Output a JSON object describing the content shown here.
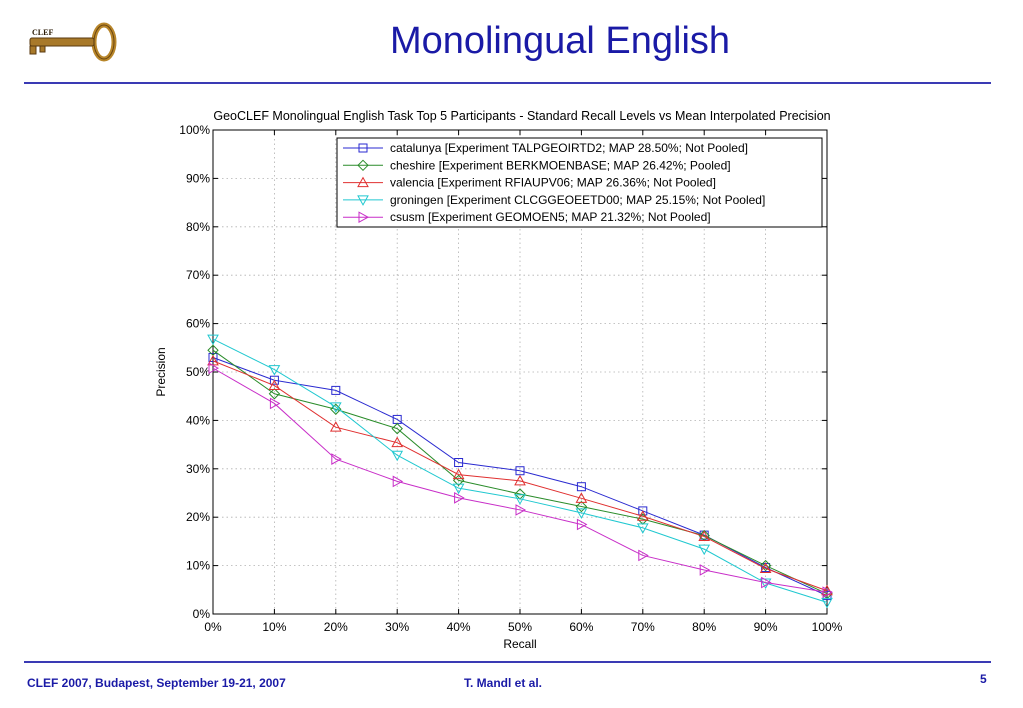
{
  "slide": {
    "title": "Monolingual English",
    "logo_text": "CLEF",
    "footer_left": "CLEF 2007, Budapest, September 19-21, 2007",
    "footer_center": "T. Mandl et al.",
    "page_number": "5",
    "accent_color": "#1a1aa6",
    "rule_color": "#3a3ab4",
    "logo_icon": "key-icon"
  },
  "chart_data": {
    "type": "line",
    "title": "GeoCLEF Monolingual English Task Top 5 Participants -  Standard Recall Levels vs Mean Interpolated Precision",
    "xlabel": "Recall",
    "ylabel": "Precision",
    "x": [
      0,
      10,
      20,
      30,
      40,
      50,
      60,
      70,
      80,
      90,
      100
    ],
    "x_ticks": [
      "0%",
      "10%",
      "20%",
      "30%",
      "40%",
      "50%",
      "60%",
      "70%",
      "80%",
      "90%",
      "100%"
    ],
    "y_ticks": [
      "0%",
      "10%",
      "20%",
      "30%",
      "40%",
      "50%",
      "60%",
      "70%",
      "80%",
      "90%",
      "100%"
    ],
    "xlim": [
      0,
      100
    ],
    "ylim": [
      0,
      100
    ],
    "grid": true,
    "legend_position": "top-right",
    "series": [
      {
        "name": "catalunya [Experiment TALPGEOIRTD2; MAP 28.50%; Not Pooled]",
        "color": "#2a2ad0",
        "marker": "square",
        "values": [
          53.0,
          48.3,
          46.2,
          40.2,
          31.3,
          29.6,
          26.3,
          21.3,
          16.3,
          9.6,
          3.8
        ]
      },
      {
        "name": "cheshire [Experiment BERKMOENBASE; MAP 26.42%; Pooled]",
        "color": "#2a8c2a",
        "marker": "diamond",
        "values": [
          54.5,
          45.5,
          42.3,
          38.3,
          27.6,
          24.8,
          22.2,
          19.6,
          16.2,
          10.0,
          4.2
        ]
      },
      {
        "name": "valencia [Experiment RFIAUPV06; MAP 26.36%; Not Pooled]",
        "color": "#e03030",
        "marker": "triangle-up",
        "values": [
          52.3,
          47.2,
          38.6,
          35.4,
          28.8,
          27.5,
          23.9,
          20.2,
          16.0,
          9.4,
          4.8
        ]
      },
      {
        "name": "groningen [Experiment CLCGGEOEETD00; MAP 25.15%; Not Pooled]",
        "color": "#20c8d0",
        "marker": "triangle-down",
        "values": [
          56.8,
          50.5,
          42.8,
          32.8,
          26.0,
          23.8,
          20.9,
          17.8,
          13.4,
          6.4,
          2.4
        ]
      },
      {
        "name": "csusm [Experiment GEOMOEN5; MAP 21.32%; Not Pooled]",
        "color": "#c82ec8",
        "marker": "triangle-right",
        "values": [
          50.8,
          43.5,
          32.0,
          27.4,
          24.0,
          21.5,
          18.5,
          12.1,
          9.1,
          6.5,
          4.5
        ]
      }
    ]
  }
}
